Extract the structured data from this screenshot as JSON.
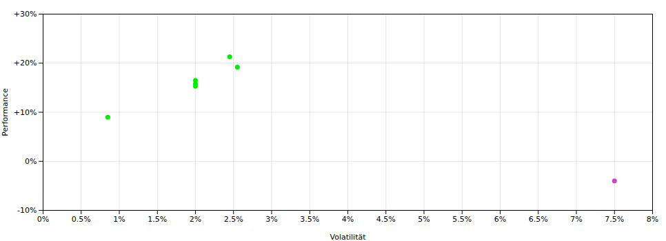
{
  "chart_data": {
    "type": "scatter",
    "xlabel": "Volatilität",
    "ylabel": "Performance",
    "series": [
      {
        "color": "#00ee00",
        "x": [
          0.0085,
          0.02,
          0.02,
          0.02,
          0.0245,
          0.0255
        ],
        "values": [
          0.09,
          0.165,
          0.158,
          0.153,
          0.213,
          0.192
        ]
      },
      {
        "color": "#cc44cc",
        "x": [
          0.075
        ],
        "values": [
          -0.04
        ]
      }
    ],
    "xlim": [
      0.0,
      0.08
    ],
    "xticks": [
      {
        "value": 0.0,
        "label": "0%"
      },
      {
        "value": 0.005,
        "label": "0.5%"
      },
      {
        "value": 0.01,
        "label": "1%"
      },
      {
        "value": 0.015,
        "label": "1.5%"
      },
      {
        "value": 0.02,
        "label": "2%"
      },
      {
        "value": 0.025,
        "label": "2.5%"
      },
      {
        "value": 0.03,
        "label": "3%"
      },
      {
        "value": 0.035,
        "label": "3.5%"
      },
      {
        "value": 0.04,
        "label": "4%"
      },
      {
        "value": 0.045,
        "label": "4.5%"
      },
      {
        "value": 0.05,
        "label": "5%"
      },
      {
        "value": 0.055,
        "label": "5.5%"
      },
      {
        "value": 0.06,
        "label": "6%"
      },
      {
        "value": 0.065,
        "label": "6.5%"
      },
      {
        "value": 0.07,
        "label": "7%"
      },
      {
        "value": 0.075,
        "label": "7.5%"
      },
      {
        "value": 0.08,
        "label": "8%"
      }
    ],
    "ylim": [
      -0.1,
      0.3
    ],
    "yticks": [
      {
        "value": -0.1,
        "label": "-10%"
      },
      {
        "value": 0.0,
        "label": "0%"
      },
      {
        "value": 0.1,
        "label": "+10%"
      },
      {
        "value": 0.2,
        "label": "+20%"
      },
      {
        "value": 0.3,
        "label": "+30%"
      }
    ],
    "grid": true
  }
}
